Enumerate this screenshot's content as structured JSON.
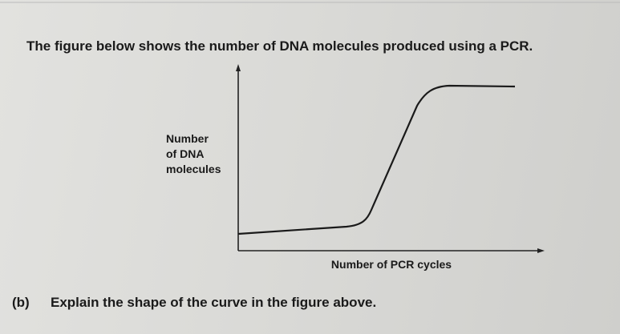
{
  "intro": "The figure below shows the number of DNA molecules produced using a PCR.",
  "figure": {
    "y_axis_label": [
      "Number",
      "of DNA",
      "molecules"
    ],
    "x_axis_label": "Number of PCR cycles"
  },
  "question": {
    "label": "(b)",
    "text": "Explain the shape of the curve in the figure above."
  }
}
